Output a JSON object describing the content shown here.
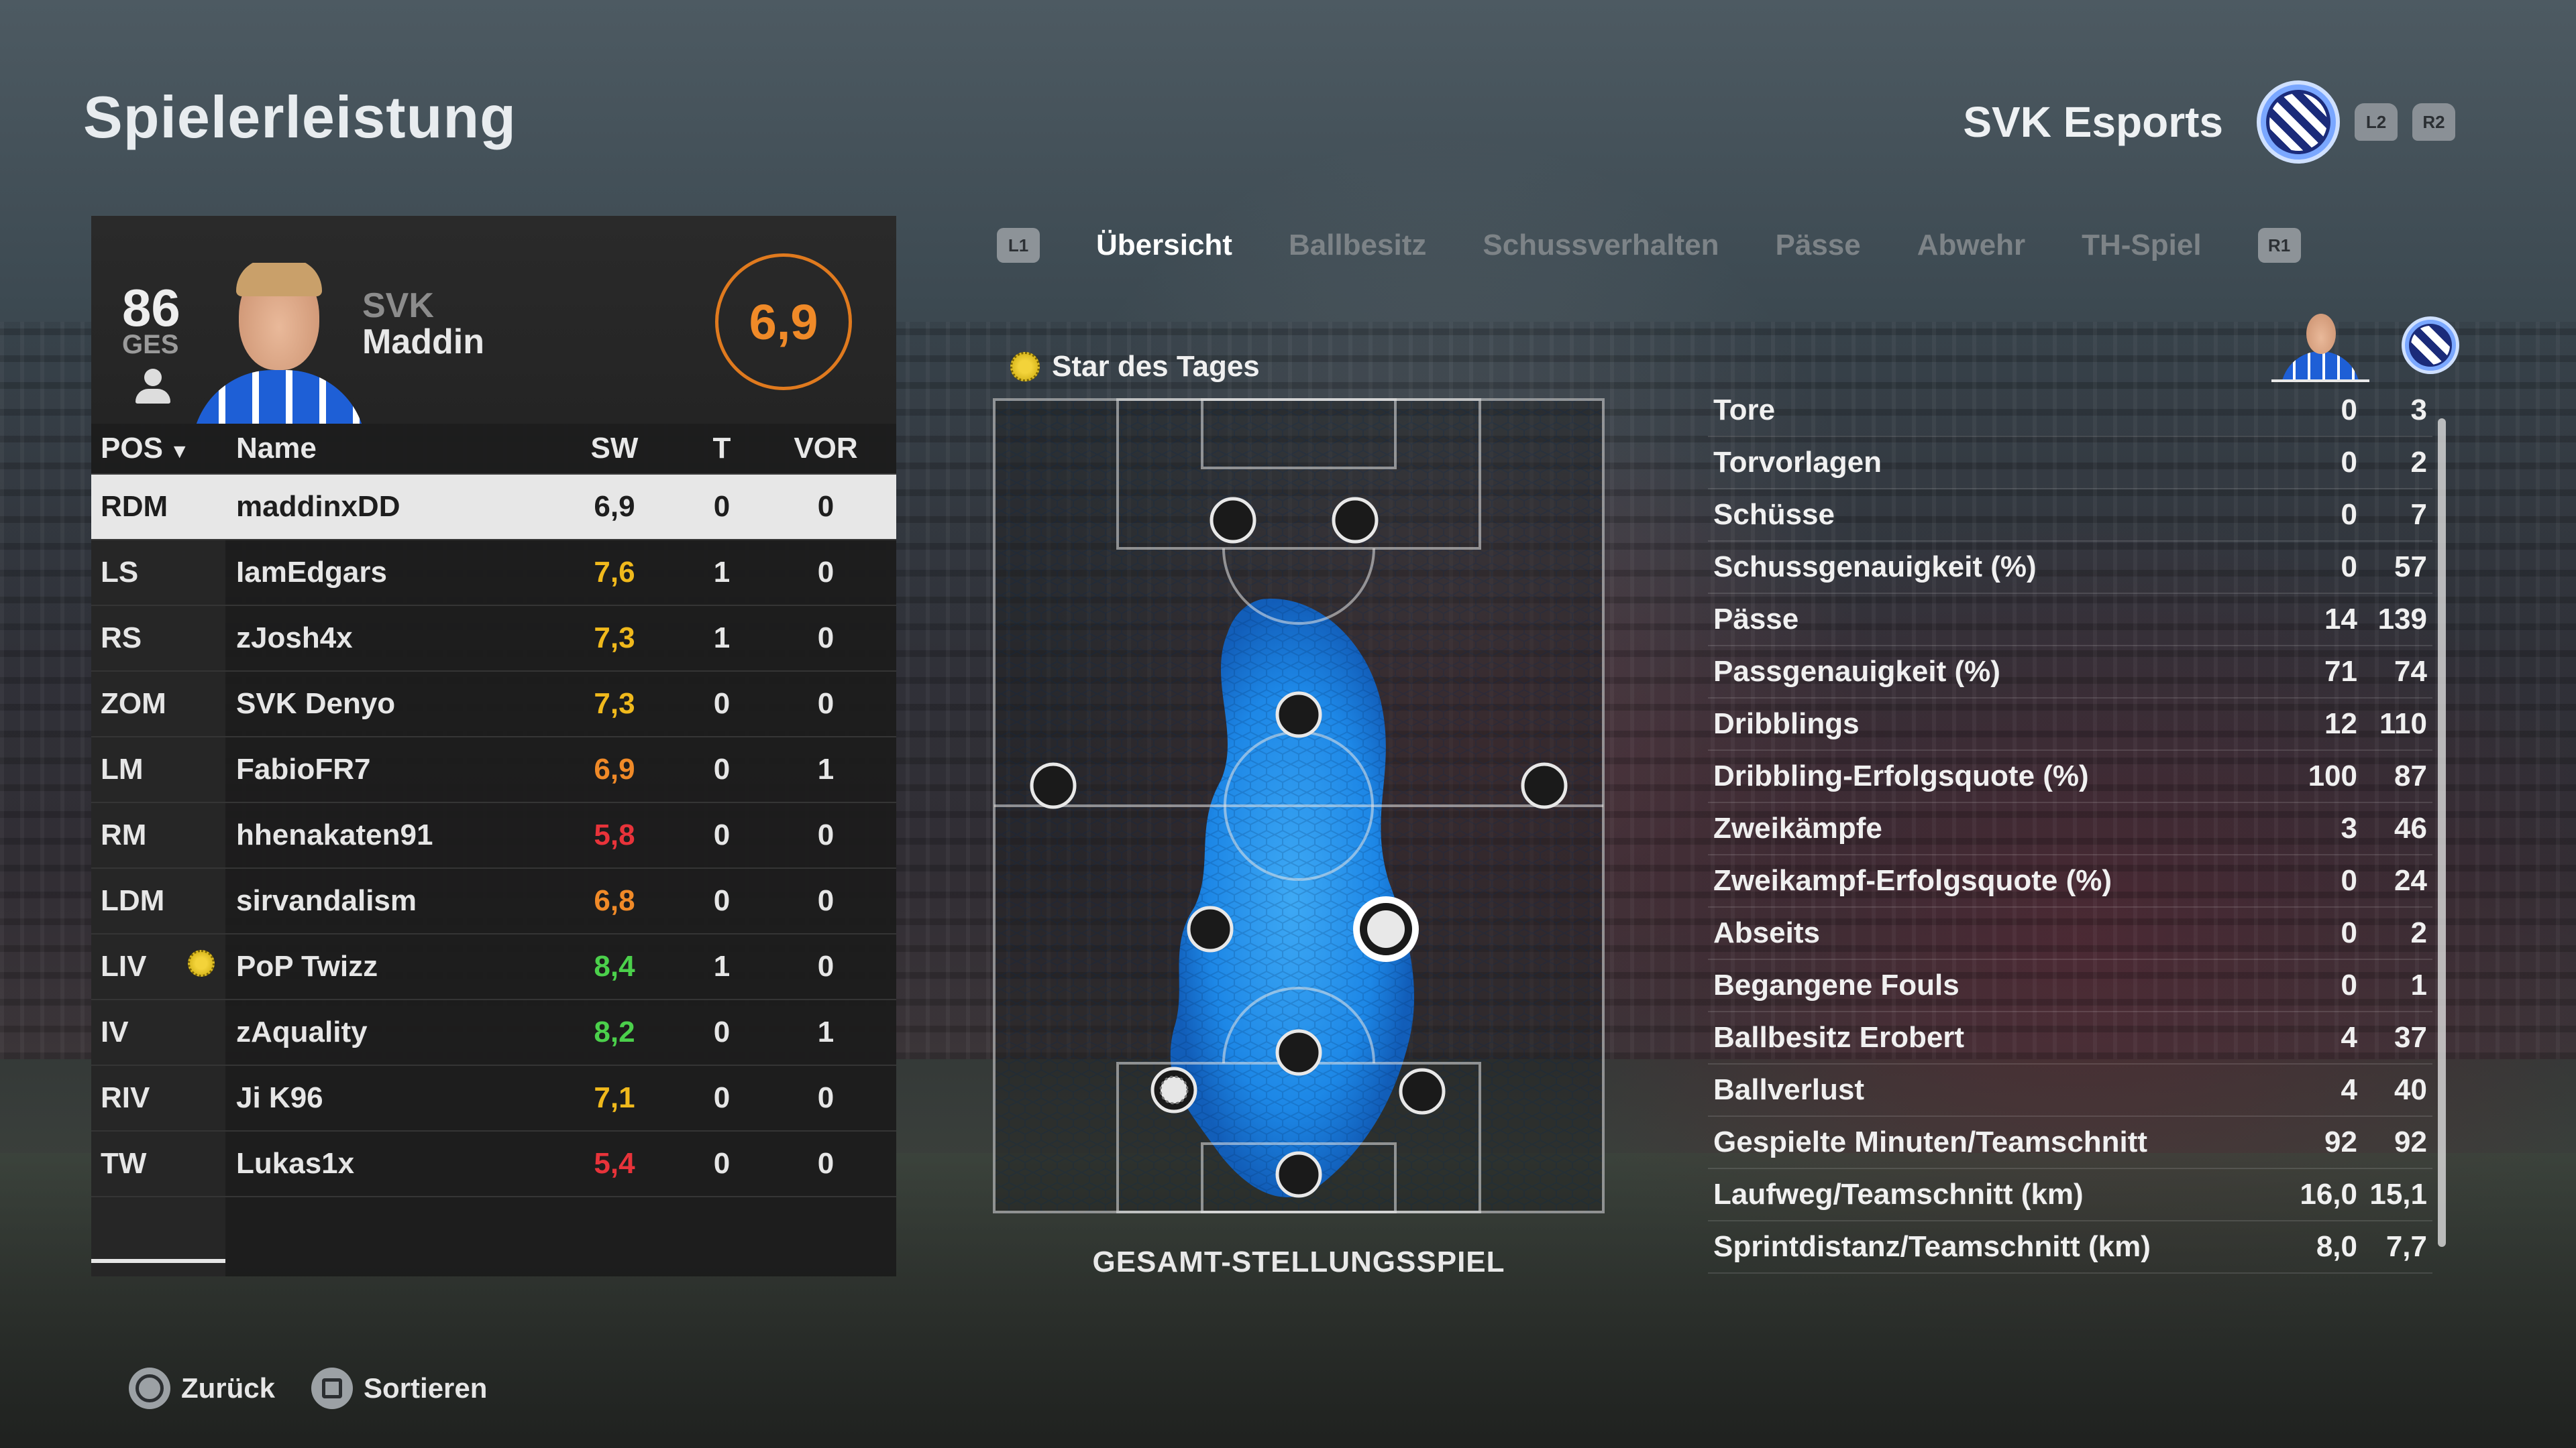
{
  "page": {
    "title": "Spielerleistung"
  },
  "team_header": {
    "name": "SVK Esports",
    "l2_label": "L2",
    "r2_label": "R2"
  },
  "player": {
    "overall": "86",
    "overall_label": "GES",
    "club": "SVK",
    "name": "Maddin",
    "rating": "6,9"
  },
  "table": {
    "headers": {
      "pos": "POS",
      "name": "Name",
      "sw": "SW",
      "t": "T",
      "vor": "VOR"
    },
    "rows": [
      {
        "pos": "RDM",
        "name": "maddinxDD",
        "sw": "6,9",
        "t": "0",
        "vor": "0",
        "selected": true,
        "rating_color": "#1e1e1e",
        "star": false
      },
      {
        "pos": "LS",
        "name": "IamEdgars",
        "sw": "7,6",
        "t": "1",
        "vor": "0",
        "rating_color": "#f0b91c",
        "star": false
      },
      {
        "pos": "RS",
        "name": "zJosh4x",
        "sw": "7,3",
        "t": "1",
        "vor": "0",
        "rating_color": "#f0b91c",
        "star": false
      },
      {
        "pos": "ZOM",
        "name": "SVK Denyo",
        "sw": "7,3",
        "t": "0",
        "vor": "0",
        "rating_color": "#f0b91c",
        "star": false
      },
      {
        "pos": "LM",
        "name": "FabioFR7",
        "sw": "6,9",
        "t": "0",
        "vor": "1",
        "rating_color": "#f08a28",
        "star": false
      },
      {
        "pos": "RM",
        "name": "hhenakaten91",
        "sw": "5,8",
        "t": "0",
        "vor": "0",
        "rating_color": "#e8333a",
        "star": false
      },
      {
        "pos": "LDM",
        "name": "sirvandalism",
        "sw": "6,8",
        "t": "0",
        "vor": "0",
        "rating_color": "#f08a28",
        "star": false
      },
      {
        "pos": "LIV",
        "name": "PoP Twizz",
        "sw": "8,4",
        "t": "1",
        "vor": "0",
        "rating_color": "#4bd04b",
        "star": true
      },
      {
        "pos": "IV",
        "name": "zAquality",
        "sw": "8,2",
        "t": "0",
        "vor": "1",
        "rating_color": "#4bd04b",
        "star": false
      },
      {
        "pos": "RIV",
        "name": "Ji K96",
        "sw": "7,1",
        "t": "0",
        "vor": "0",
        "rating_color": "#f0b91c",
        "star": false
      },
      {
        "pos": "TW",
        "name": "Lukas1x",
        "sw": "5,4",
        "t": "0",
        "vor": "0",
        "rating_color": "#e8333a",
        "star": false
      }
    ]
  },
  "tabs": {
    "l1": "L1",
    "r1": "R1",
    "items": [
      "Übersicht",
      "Ballbesitz",
      "Schussverhalten",
      "Pässe",
      "Abwehr",
      "TH-Spiel"
    ],
    "active_index": 0
  },
  "field": {
    "star_label": "Star des Tages",
    "caption": "GESAMT-STELLUNGSSPIEL",
    "heat_color": "#1c8cf0"
  },
  "stats": [
    {
      "label": "Tore",
      "player": "0",
      "team": "3"
    },
    {
      "label": "Torvorlagen",
      "player": "0",
      "team": "2"
    },
    {
      "label": "Schüsse",
      "player": "0",
      "team": "7"
    },
    {
      "label": "Schussgenauigkeit (%)",
      "player": "0",
      "team": "57"
    },
    {
      "label": "Pässe",
      "player": "14",
      "team": "139"
    },
    {
      "label": "Passgenauigkeit (%)",
      "player": "71",
      "team": "74"
    },
    {
      "label": "Dribblings",
      "player": "12",
      "team": "110"
    },
    {
      "label": "Dribbling-Erfolgsquote (%)",
      "player": "100",
      "team": "87"
    },
    {
      "label": "Zweikämpfe",
      "player": "3",
      "team": "46"
    },
    {
      "label": "Zweikampf-Erfolgsquote (%)",
      "player": "0",
      "team": "24"
    },
    {
      "label": "Abseits",
      "player": "0",
      "team": "2"
    },
    {
      "label": "Begangene Fouls",
      "player": "0",
      "team": "1"
    },
    {
      "label": "Ballbesitz Erobert",
      "player": "4",
      "team": "37"
    },
    {
      "label": "Ballverlust",
      "player": "4",
      "team": "40"
    },
    {
      "label": "Gespielte Minuten/Teamschnitt",
      "player": "92",
      "team": "92"
    },
    {
      "label": "Laufweg/Teamschnitt (km)",
      "player": "16,0",
      "team": "15,1"
    },
    {
      "label": "Sprintdistanz/Teamschnitt (km)",
      "player": "8,0",
      "team": "7,7"
    }
  ],
  "bottom": {
    "back": "Zurück",
    "sort": "Sortieren"
  }
}
